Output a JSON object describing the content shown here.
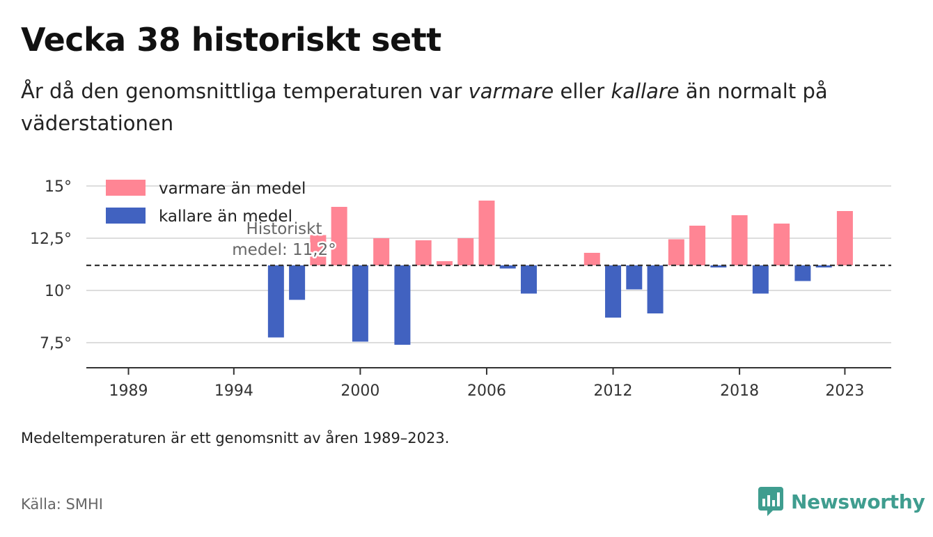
{
  "header": {
    "title": "Vecka 38 historiskt sett",
    "subtitle_pre": "År då den genomsnittliga temperaturen var ",
    "subtitle_warm": "varmare",
    "subtitle_mid": " eller ",
    "subtitle_cold": "kallare",
    "subtitle_post": " än normalt på väderstationen"
  },
  "footer": {
    "note": "Medeltemperaturen är ett genomsnitt av åren 1989–2023.",
    "source": "Källa: SMHI",
    "brand": "Newsworthy"
  },
  "colors": {
    "warm": "#ff8594",
    "cold": "#4162c0",
    "grid": "#dddddd",
    "axis": "#333333",
    "brand": "#3f9d8f"
  },
  "chart_data": {
    "type": "bar",
    "baseline": 11.2,
    "baseline_label": [
      "Historiskt",
      "medel: 11,2°"
    ],
    "legend": [
      {
        "name": "varmare än medel",
        "color": "#ff8594"
      },
      {
        "name": "kallare än medel",
        "color": "#4162c0"
      }
    ],
    "legend_position": "top-left",
    "grid": true,
    "xlim": [
      1987,
      2025.2
    ],
    "ylim": [
      6.3,
      16
    ],
    "y_ticks": [
      {
        "value": 7.5,
        "label": "7,5°"
      },
      {
        "value": 10,
        "label": "10°"
      },
      {
        "value": 12.5,
        "label": "12,5°"
      },
      {
        "value": 15,
        "label": "15°"
      }
    ],
    "x_ticks": [
      {
        "value": 1989,
        "label": "1989"
      },
      {
        "value": 1994,
        "label": "1994"
      },
      {
        "value": 2000,
        "label": "2000"
      },
      {
        "value": 2006,
        "label": "2006"
      },
      {
        "value": 2012,
        "label": "2012"
      },
      {
        "value": 2018,
        "label": "2018"
      },
      {
        "value": 2023,
        "label": "2023"
      }
    ],
    "years": [
      1996,
      1997,
      1998,
      1999,
      2000,
      2001,
      2002,
      2003,
      2004,
      2005,
      2006,
      2007,
      2008,
      2011,
      2012,
      2013,
      2014,
      2015,
      2016,
      2017,
      2018,
      2019,
      2020,
      2021,
      2022,
      2023
    ],
    "values": [
      7.75,
      9.55,
      12.65,
      14.0,
      7.55,
      12.5,
      7.4,
      12.4,
      11.4,
      12.5,
      14.3,
      11.05,
      9.85,
      11.8,
      8.7,
      10.05,
      8.9,
      12.45,
      13.1,
      11.1,
      13.6,
      9.85,
      13.2,
      10.45,
      11.1,
      13.8
    ]
  }
}
